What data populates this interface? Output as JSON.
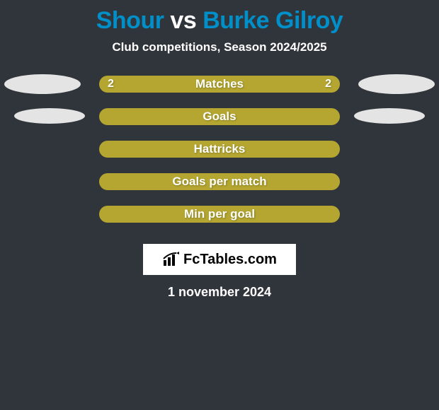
{
  "title": {
    "left_name": "Shour",
    "vs": "vs",
    "right_name": "Burke Gilroy",
    "left_color": "#008fc9",
    "right_color": "#008fc9",
    "vs_color": "#ffffff",
    "fontsize": 34
  },
  "subtitle": "Club competitions, Season 2024/2025",
  "subtitle_fontsize": 17,
  "background_color": "#30353b",
  "bars": {
    "track_color": "#b4a630",
    "track_width": 340,
    "track_height": 24,
    "track_radius": 12,
    "label_color": "#ffffff",
    "label_fontsize": 17,
    "value_color": "#ffffff",
    "value_fontsize": 16,
    "items": [
      {
        "label": "Matches",
        "left_value": "2",
        "right_value": "2",
        "show_values": true,
        "left_oval": "big",
        "right_oval": "big"
      },
      {
        "label": "Goals",
        "left_value": "",
        "right_value": "",
        "show_values": false,
        "left_oval": "small",
        "right_oval": "small"
      },
      {
        "label": "Hattricks",
        "left_value": "",
        "right_value": "",
        "show_values": false,
        "left_oval": null,
        "right_oval": null
      },
      {
        "label": "Goals per match",
        "left_value": "",
        "right_value": "",
        "show_values": false,
        "left_oval": null,
        "right_oval": null
      },
      {
        "label": "Min per goal",
        "left_value": "",
        "right_value": "",
        "show_values": false,
        "left_oval": null,
        "right_oval": null
      }
    ]
  },
  "oval_color": "#e4e4e4",
  "logo_text": "FcTables.com",
  "logo_box_bg": "#ffffff",
  "date": "1 november 2024",
  "date_fontsize": 18
}
